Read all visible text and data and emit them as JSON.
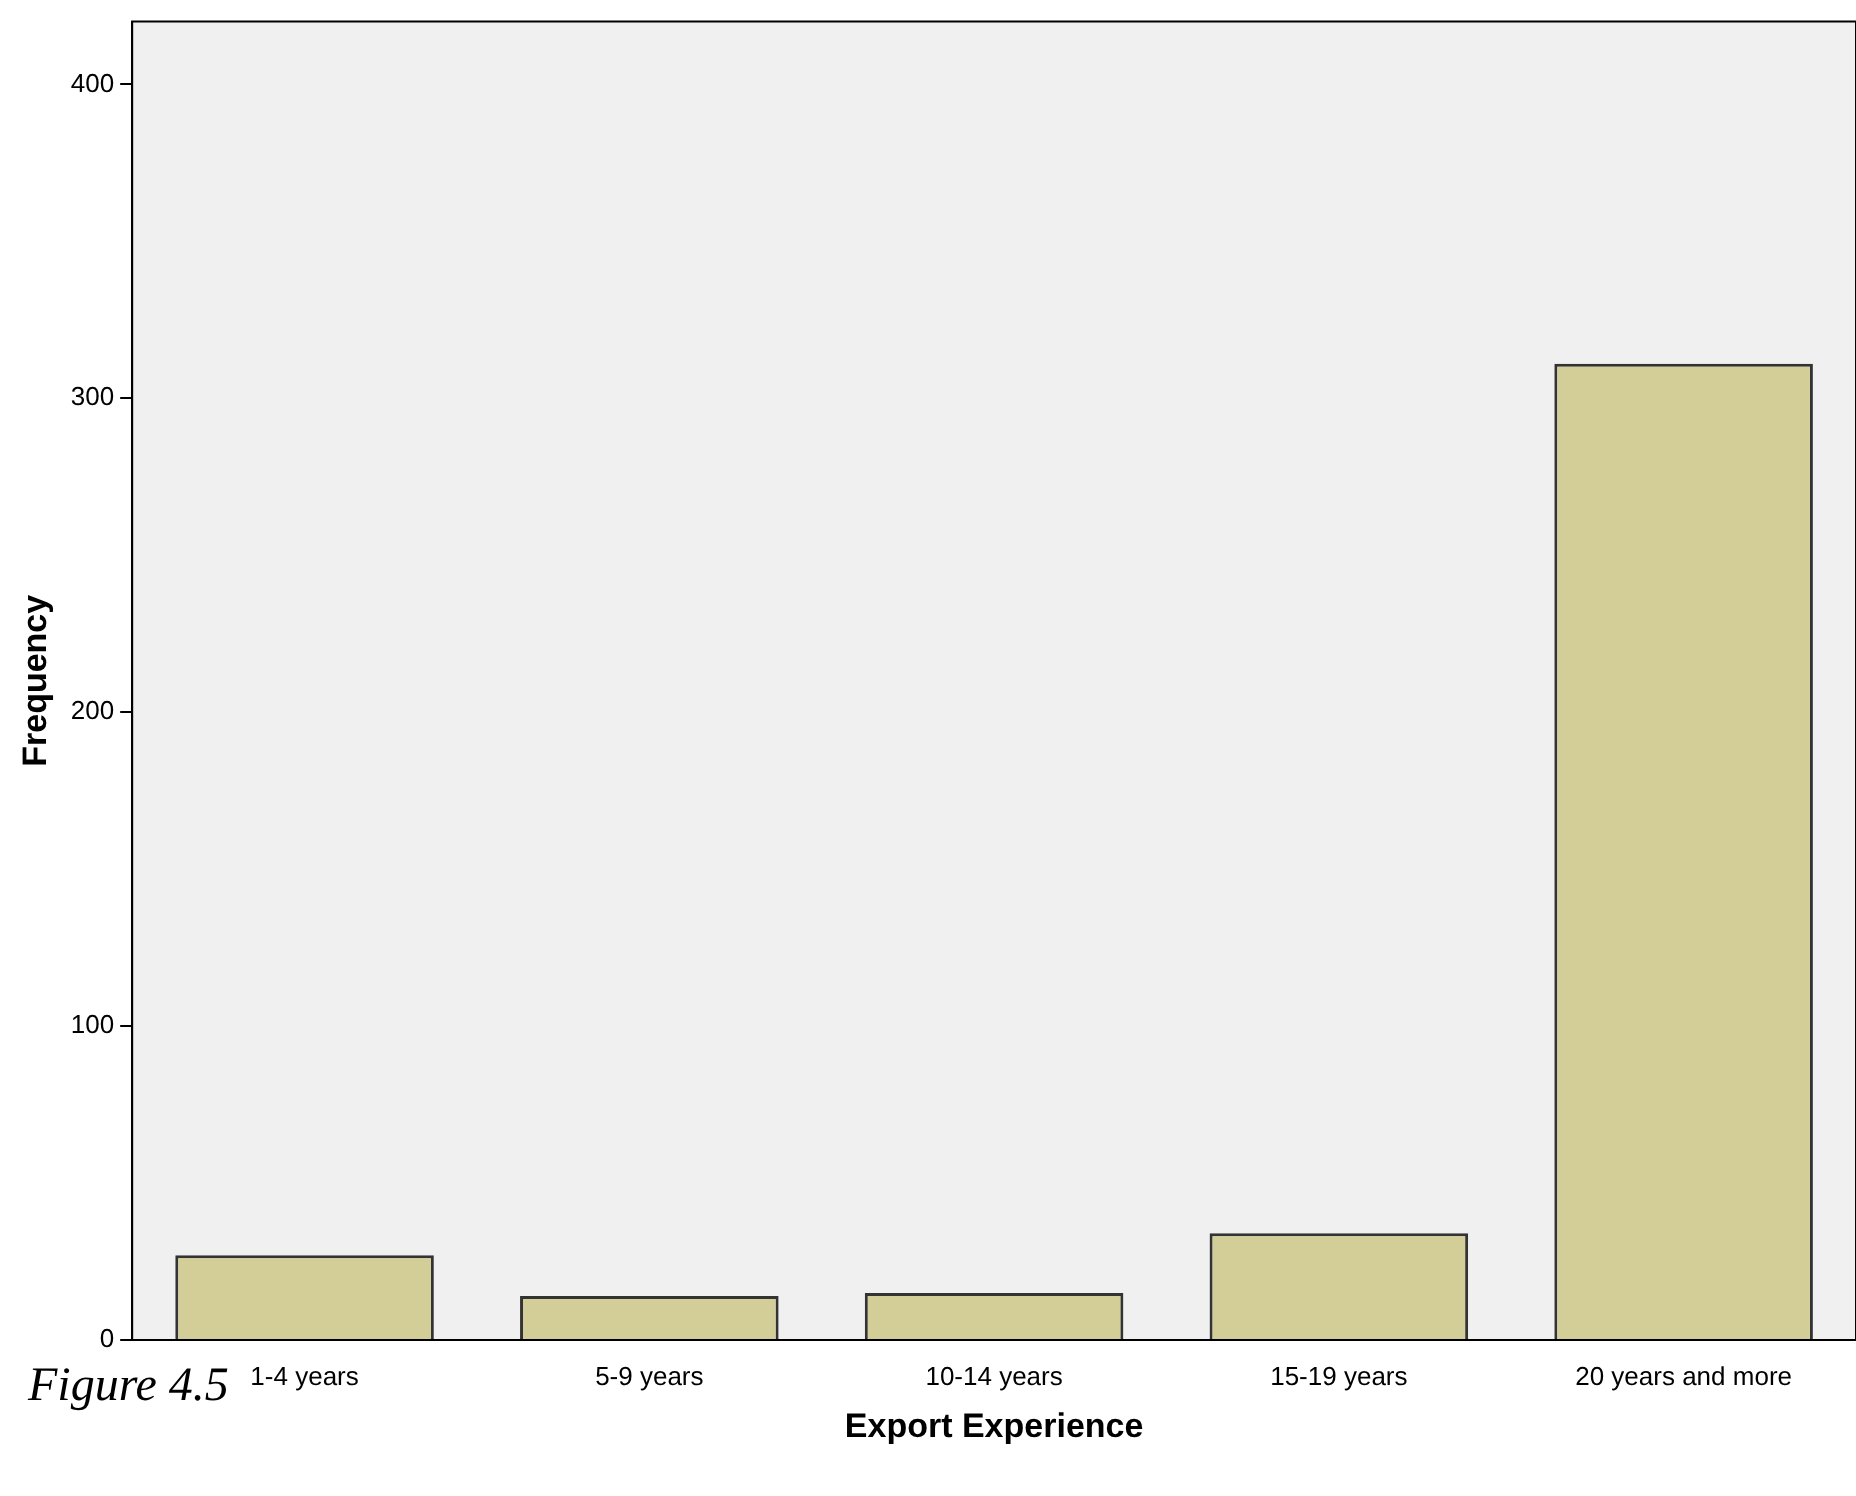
{
  "chart_data": {
    "type": "bar",
    "categories": [
      "1-4 years",
      "5-9 years",
      "10-14 years",
      "15-19 years",
      "20 years and more"
    ],
    "values": [
      27,
      14,
      15,
      34,
      311
    ],
    "color": "#d3ce97",
    "xlabel": "Export Experience",
    "ylabel": "Frequency",
    "ylim": [
      0,
      420
    ],
    "yticks": [
      0,
      100,
      200,
      300,
      400
    ],
    "grid": false,
    "legend": false,
    "annotations": [
      "Figure 4.5"
    ]
  }
}
